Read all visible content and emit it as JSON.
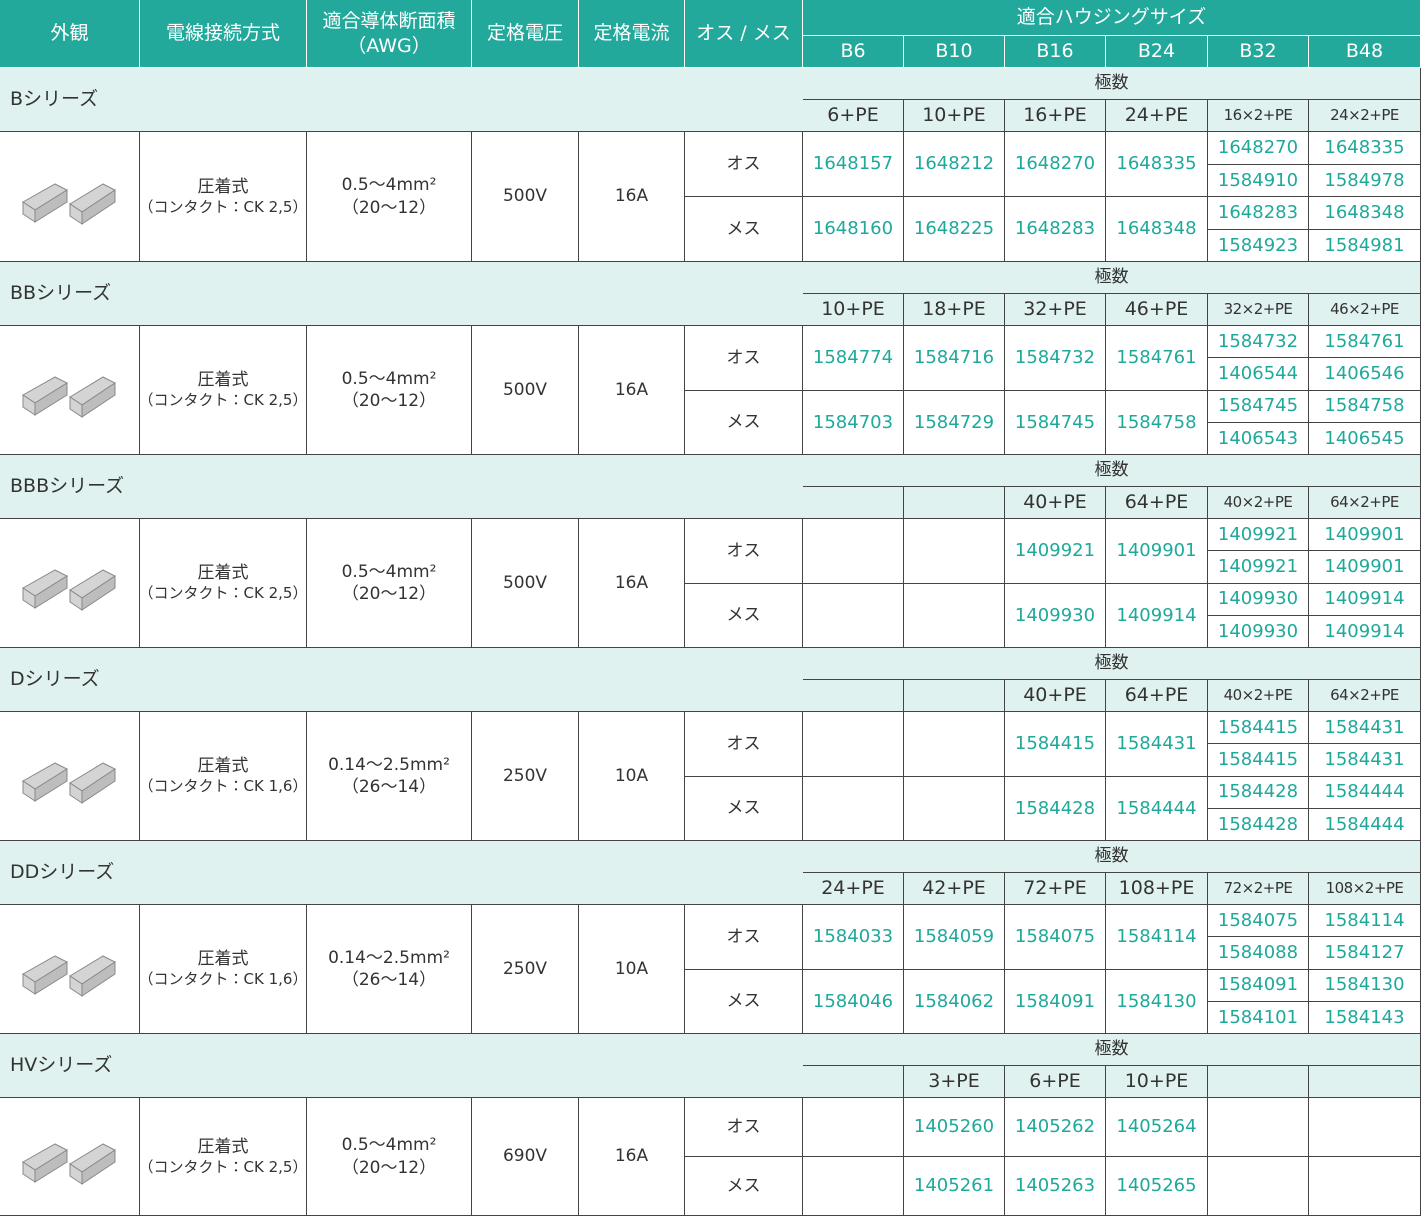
{
  "header": {
    "appearance": "外観",
    "wiring": "電線接続方式",
    "conductor": [
      "適合導体断面積",
      "（AWG）"
    ],
    "voltage": "定格電圧",
    "current": "定格電流",
    "gender": "オス / メス",
    "housing_title": "適合ハウジングサイズ",
    "housing": [
      "B6",
      "B10",
      "B16",
      "B24",
      "B32",
      "B48"
    ]
  },
  "series": [
    {
      "name": "Bシリーズ",
      "poles_label": "極数",
      "poles": [
        "6+PE",
        "10+PE",
        "16+PE",
        "24+PE",
        "16×2+PE",
        "24×2+PE"
      ],
      "wiring": [
        "圧着式",
        "（コンタクト：CK 2,5）"
      ],
      "conductor": [
        "0.5～4mm²",
        "（20～12）"
      ],
      "voltage": "500V",
      "current": "16A",
      "rows": [
        {
          "label": "オス",
          "main": [
            "1648157",
            "1648212",
            "1648270",
            "1648335"
          ],
          "split": [
            [
              "1648270",
              "1648335"
            ],
            [
              "1584910",
              "1584978"
            ]
          ]
        },
        {
          "label": "メス",
          "main": [
            "1648160",
            "1648225",
            "1648283",
            "1648348"
          ],
          "split": [
            [
              "1648283",
              "1648348"
            ],
            [
              "1584923",
              "1584981"
            ]
          ]
        }
      ]
    },
    {
      "name": "BBシリーズ",
      "poles_label": "極数",
      "poles": [
        "10+PE",
        "18+PE",
        "32+PE",
        "46+PE",
        "32×2+PE",
        "46×2+PE"
      ],
      "wiring": [
        "圧着式",
        "（コンタクト：CK 2,5）"
      ],
      "conductor": [
        "0.5～4mm²",
        "（20～12）"
      ],
      "voltage": "500V",
      "current": "16A",
      "rows": [
        {
          "label": "オス",
          "main": [
            "1584774",
            "1584716",
            "1584732",
            "1584761"
          ],
          "split": [
            [
              "1584732",
              "1584761"
            ],
            [
              "1406544",
              "1406546"
            ]
          ]
        },
        {
          "label": "メス",
          "main": [
            "1584703",
            "1584729",
            "1584745",
            "1584758"
          ],
          "split": [
            [
              "1584745",
              "1584758"
            ],
            [
              "1406543",
              "1406545"
            ]
          ]
        }
      ]
    },
    {
      "name": "BBBシリーズ",
      "poles_label": "極数",
      "poles": [
        null,
        null,
        "40+PE",
        "64+PE",
        "40×2+PE",
        "64×2+PE"
      ],
      "wiring": [
        "圧着式",
        "（コンタクト：CK 2,5）"
      ],
      "conductor": [
        "0.5～4mm²",
        "（20～12）"
      ],
      "voltage": "500V",
      "current": "16A",
      "rows": [
        {
          "label": "オス",
          "main": [
            null,
            null,
            "1409921",
            "1409901"
          ],
          "split": [
            [
              "1409921",
              "1409901"
            ],
            [
              "1409921",
              "1409901"
            ]
          ]
        },
        {
          "label": "メス",
          "main": [
            null,
            null,
            "1409930",
            "1409914"
          ],
          "split": [
            [
              "1409930",
              "1409914"
            ],
            [
              "1409930",
              "1409914"
            ]
          ]
        }
      ]
    },
    {
      "name": "Dシリーズ",
      "poles_label": "極数",
      "poles": [
        null,
        null,
        "40+PE",
        "64+PE",
        "40×2+PE",
        "64×2+PE"
      ],
      "wiring": [
        "圧着式",
        "（コンタクト：CK 1,6）"
      ],
      "conductor": [
        "0.14～2.5mm²",
        "（26～14）"
      ],
      "voltage": "250V",
      "current": "10A",
      "rows": [
        {
          "label": "オス",
          "main": [
            null,
            null,
            "1584415",
            "1584431"
          ],
          "split": [
            [
              "1584415",
              "1584431"
            ],
            [
              "1584415",
              "1584431"
            ]
          ]
        },
        {
          "label": "メス",
          "main": [
            null,
            null,
            "1584428",
            "1584444"
          ],
          "split": [
            [
              "1584428",
              "1584444"
            ],
            [
              "1584428",
              "1584444"
            ]
          ]
        }
      ]
    },
    {
      "name": "DDシリーズ",
      "poles_label": "極数",
      "poles": [
        "24+PE",
        "42+PE",
        "72+PE",
        "108+PE",
        "72×2+PE",
        "108×2+PE"
      ],
      "wiring": [
        "圧着式",
        "（コンタクト：CK 1,6）"
      ],
      "conductor": [
        "0.14～2.5mm²",
        "（26～14）"
      ],
      "voltage": "250V",
      "current": "10A",
      "rows": [
        {
          "label": "オス",
          "main": [
            "1584033",
            "1584059",
            "1584075",
            "1584114"
          ],
          "split": [
            [
              "1584075",
              "1584114"
            ],
            [
              "1584088",
              "1584127"
            ]
          ]
        },
        {
          "label": "メス",
          "main": [
            "1584046",
            "1584062",
            "1584091",
            "1584130"
          ],
          "split": [
            [
              "1584091",
              "1584130"
            ],
            [
              "1584101",
              "1584143"
            ]
          ]
        }
      ]
    },
    {
      "name": "HVシリーズ",
      "poles_label": "極数",
      "poles": [
        null,
        "3+PE",
        "6+PE",
        "10+PE",
        null,
        null
      ],
      "wiring": [
        "圧着式",
        "（コンタクト：CK 2,5）"
      ],
      "conductor": [
        "0.5～4mm²",
        "（20～12）"
      ],
      "voltage": "690V",
      "current": "16A",
      "rows": [
        {
          "label": "オス",
          "main": [
            null,
            "1405260",
            "1405262",
            "1405264",
            null,
            null
          ]
        },
        {
          "label": "メス",
          "main": [
            null,
            "1405261",
            "1405263",
            "1405265",
            null,
            null
          ]
        }
      ]
    }
  ]
}
